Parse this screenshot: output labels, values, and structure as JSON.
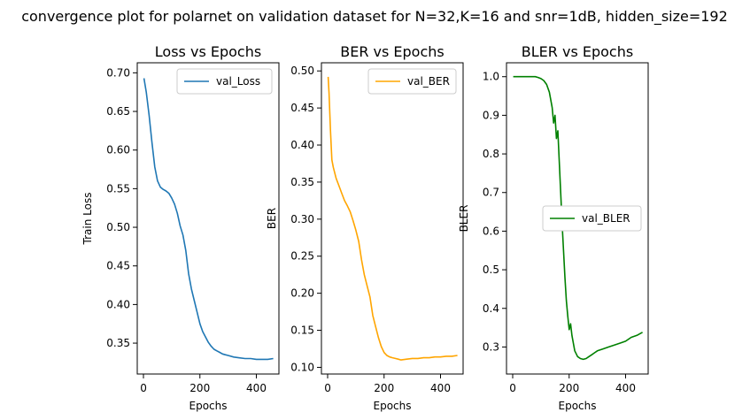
{
  "figure": {
    "suptitle": "convergence plot for polarnet on validation dataset for N=32,K=16 and snr=1dB, hidden_size=192"
  },
  "chart_data": [
    {
      "type": "line",
      "title": "Loss vs Epochs",
      "xlabel": "Epochs",
      "ylabel": "Train Loss",
      "xlim": [
        -22,
        480
      ],
      "ylim": [
        0.31,
        0.713
      ],
      "xticks": [
        0,
        200,
        400
      ],
      "yticks": [
        0.35,
        0.4,
        0.45,
        0.5,
        0.55,
        0.6,
        0.65,
        0.7
      ],
      "ytick_labels": [
        "0.35",
        "0.40",
        "0.45",
        "0.50",
        "0.55",
        "0.60",
        "0.65",
        "0.70"
      ],
      "legend": "upper right",
      "grid": false,
      "series": [
        {
          "name": "val_Loss",
          "color": "#1f77b4",
          "x": [
            2,
            10,
            20,
            30,
            40,
            50,
            60,
            70,
            80,
            90,
            100,
            110,
            120,
            130,
            140,
            150,
            160,
            170,
            180,
            190,
            200,
            210,
            220,
            230,
            240,
            250,
            260,
            270,
            280,
            290,
            300,
            320,
            340,
            360,
            380,
            400,
            420,
            440,
            460
          ],
          "y": [
            0.693,
            0.675,
            0.645,
            0.61,
            0.578,
            0.56,
            0.552,
            0.549,
            0.547,
            0.544,
            0.538,
            0.53,
            0.518,
            0.502,
            0.49,
            0.47,
            0.44,
            0.42,
            0.405,
            0.39,
            0.375,
            0.365,
            0.358,
            0.351,
            0.346,
            0.342,
            0.34,
            0.338,
            0.336,
            0.335,
            0.334,
            0.332,
            0.331,
            0.33,
            0.33,
            0.329,
            0.329,
            0.329,
            0.33
          ]
        }
      ]
    },
    {
      "type": "line",
      "title": "BER vs Epochs",
      "xlabel": "Epochs",
      "ylabel": "BER",
      "xlim": [
        -22,
        480
      ],
      "ylim": [
        0.091,
        0.511
      ],
      "xticks": [
        0,
        200,
        400
      ],
      "yticks": [
        0.1,
        0.15,
        0.2,
        0.25,
        0.3,
        0.35,
        0.4,
        0.45,
        0.5
      ],
      "ytick_labels": [
        "0.10",
        "0.15",
        "0.20",
        "0.25",
        "0.30",
        "0.35",
        "0.40",
        "0.45",
        "0.50"
      ],
      "legend": "upper right",
      "grid": false,
      "series": [
        {
          "name": "val_BER",
          "color": "#ffa500",
          "x": [
            2,
            5,
            10,
            15,
            20,
            30,
            40,
            50,
            60,
            70,
            80,
            90,
            100,
            110,
            120,
            130,
            140,
            150,
            160,
            170,
            180,
            190,
            200,
            210,
            220,
            230,
            240,
            250,
            260,
            280,
            300,
            320,
            340,
            360,
            380,
            400,
            420,
            440,
            460
          ],
          "y": [
            0.492,
            0.47,
            0.42,
            0.38,
            0.37,
            0.355,
            0.345,
            0.335,
            0.325,
            0.318,
            0.31,
            0.298,
            0.285,
            0.27,
            0.245,
            0.225,
            0.21,
            0.195,
            0.17,
            0.155,
            0.14,
            0.128,
            0.12,
            0.116,
            0.114,
            0.113,
            0.112,
            0.111,
            0.11,
            0.111,
            0.112,
            0.112,
            0.113,
            0.113,
            0.114,
            0.114,
            0.115,
            0.115,
            0.116
          ]
        }
      ]
    },
    {
      "type": "line",
      "title": "BLER vs Epochs",
      "xlabel": "Epochs",
      "ylabel": "BLER",
      "xlim": [
        -22,
        480
      ],
      "ylim": [
        0.23,
        1.036
      ],
      "xticks": [
        0,
        200,
        400
      ],
      "yticks": [
        0.3,
        0.4,
        0.5,
        0.6,
        0.7,
        0.8,
        0.9,
        1.0
      ],
      "ytick_labels": [
        "0.3",
        "0.4",
        "0.5",
        "0.6",
        "0.7",
        "0.8",
        "0.9",
        "1.0"
      ],
      "legend": "center right",
      "grid": false,
      "series": [
        {
          "name": "val_BLER",
          "color": "#008000",
          "x": [
            2,
            20,
            40,
            60,
            80,
            90,
            100,
            110,
            120,
            130,
            140,
            145,
            150,
            155,
            160,
            165,
            170,
            175,
            180,
            185,
            190,
            195,
            200,
            205,
            210,
            215,
            220,
            230,
            240,
            250,
            260,
            270,
            280,
            290,
            300,
            320,
            340,
            360,
            380,
            400,
            420,
            440,
            460
          ],
          "y": [
            1.0,
            1.0,
            1.0,
            1.0,
            1.0,
            0.998,
            0.995,
            0.99,
            0.98,
            0.96,
            0.92,
            0.88,
            0.9,
            0.84,
            0.86,
            0.78,
            0.7,
            0.62,
            0.55,
            0.48,
            0.42,
            0.38,
            0.345,
            0.36,
            0.33,
            0.31,
            0.29,
            0.275,
            0.27,
            0.268,
            0.27,
            0.275,
            0.28,
            0.285,
            0.29,
            0.295,
            0.3,
            0.305,
            0.31,
            0.315,
            0.325,
            0.33,
            0.338
          ]
        }
      ]
    }
  ]
}
